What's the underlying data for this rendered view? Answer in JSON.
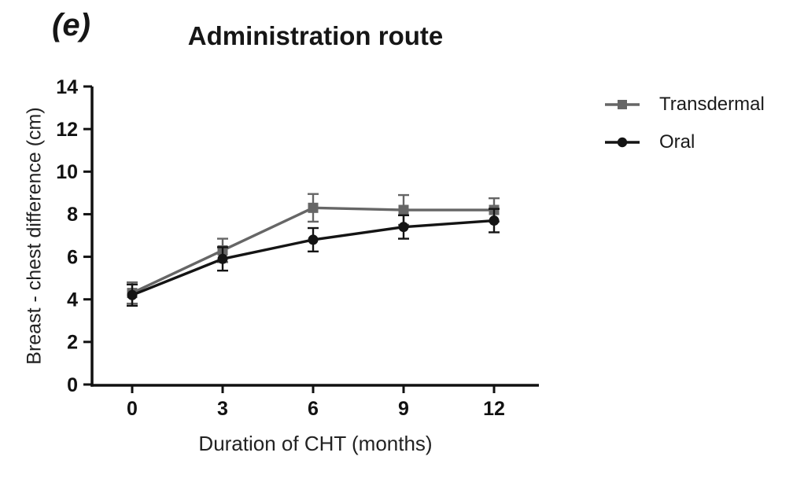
{
  "figure": {
    "panel_label": "(e)"
  },
  "chart_data": {
    "type": "line",
    "title": "Administration route",
    "xlabel": "Duration of CHT (months)",
    "ylabel": "Breast - chest difference (cm)",
    "x": [
      0,
      3,
      6,
      9,
      12
    ],
    "yticks": [
      0,
      2,
      4,
      6,
      8,
      10,
      12,
      14
    ],
    "ylim": [
      0,
      14
    ],
    "xlim": [
      -1.3,
      13.5
    ],
    "grid": false,
    "legend_position": "right",
    "axis_color": "#111111",
    "series": [
      {
        "name": "Transdermal",
        "marker": "square",
        "color": "#666666",
        "values": [
          4.3,
          6.3,
          8.3,
          8.2,
          8.2
        ],
        "errors": [
          0.5,
          0.55,
          0.65,
          0.7,
          0.55
        ]
      },
      {
        "name": "Oral",
        "marker": "circle",
        "color": "#141414",
        "values": [
          4.2,
          5.9,
          6.8,
          7.4,
          7.7
        ],
        "errors": [
          0.5,
          0.55,
          0.55,
          0.55,
          0.55
        ]
      }
    ]
  }
}
